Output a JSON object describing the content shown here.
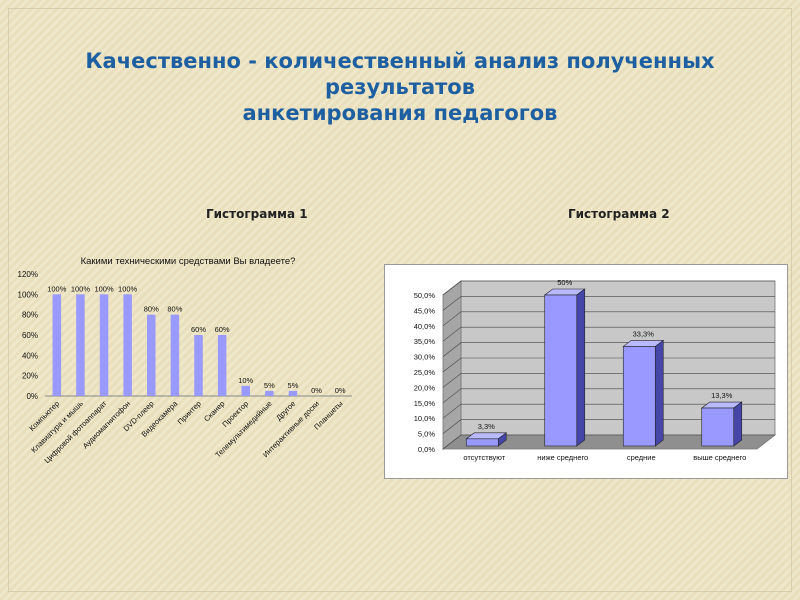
{
  "title": {
    "line1": "Качественно - количественный анализ полученных",
    "line2": "результатов",
    "line3": "анкетирования педагогов"
  },
  "hist1_label": "Гистограмма 1",
  "hist2_label": "Гистограмма 2",
  "colors": {
    "bar": "#9999ff",
    "bar_dark": "#4646a8",
    "title": "#1d5fa0"
  },
  "chart_data": [
    {
      "type": "bar",
      "title": "Какими техническими средствами Вы владеете?",
      "categories": [
        "Компьютер",
        "Клавиатура и мышь",
        "Цифровой фотоаппарат",
        "Аудиомагнитофон",
        "DVD-плеер",
        "Видеокамера",
        "Принтер",
        "Сканер",
        "Проектор",
        "Телемультимедийные",
        "Другое",
        "Интерактивные доски",
        "Планшеты"
      ],
      "values": [
        100,
        100,
        100,
        100,
        80,
        80,
        60,
        60,
        10,
        5,
        5,
        0,
        0
      ],
      "data_labels": [
        "100%",
        "100%",
        "100%",
        "100%",
        "80%",
        "80%",
        "60%",
        "60%",
        "10%",
        "5%",
        "5%",
        "0%",
        "0%"
      ],
      "yticks": [
        "0%",
        "20%",
        "40%",
        "60%",
        "80%",
        "100%",
        "120%"
      ],
      "ylim": [
        0,
        120
      ],
      "legend": "none",
      "grid": false
    },
    {
      "type": "bar",
      "title": "",
      "categories": [
        "отсутствуют",
        "ниже среднего",
        "средние",
        "выше среднего"
      ],
      "values": [
        3.3,
        50,
        33.3,
        13.3
      ],
      "data_labels": [
        "3,3%",
        "50%",
        "33,3%",
        "13,3%"
      ],
      "yticks": [
        "0,0%",
        "5,0%",
        "10,0%",
        "15,0%",
        "20,0%",
        "25,0%",
        "30,0%",
        "35,0%",
        "40,0%",
        "45,0%",
        "50,0%"
      ],
      "ylim": [
        0,
        50
      ],
      "legend": "none",
      "grid": true,
      "style": "3d"
    }
  ]
}
